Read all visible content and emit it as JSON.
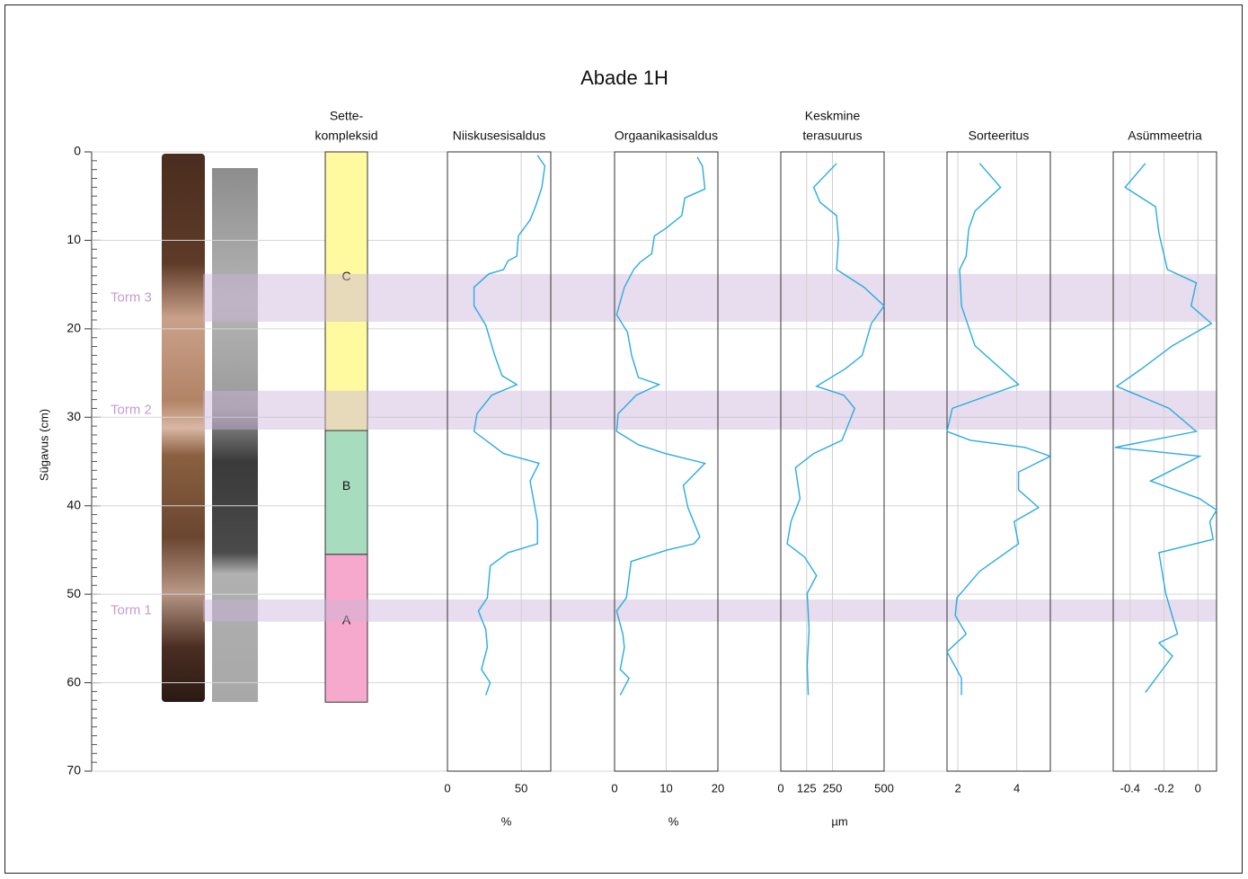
{
  "title": "Abade 1H",
  "depth_axis": {
    "label": "Sügavus (cm)",
    "lim": [
      0,
      70
    ],
    "ticks": [
      0,
      10,
      20,
      30,
      40,
      50,
      60,
      70
    ],
    "minor_step": 1,
    "grid": true
  },
  "storm_layers": [
    {
      "label": "Torm 3",
      "top": 13.8,
      "bottom": 19.2
    },
    {
      "label": "Torm 2",
      "top": 27.0,
      "bottom": 31.4
    },
    {
      "label": "Torm 1",
      "top": 50.6,
      "bottom": 53.1
    }
  ],
  "units": {
    "title": [
      "Sette-",
      "kompleksid"
    ],
    "zones": [
      {
        "label": "C",
        "top": 0,
        "bottom": 31.5,
        "color": "#fff9a0"
      },
      {
        "label": "B",
        "top": 31.5,
        "bottom": 45.5,
        "color": "#a8dcbf"
      },
      {
        "label": "A",
        "top": 45.5,
        "bottom": 62.2,
        "color": "#f6a9cc"
      }
    ]
  },
  "chart_data": [
    {
      "type": "line",
      "title": "Niiskusesisaldus",
      "xlabel": "%",
      "xlim": [
        0,
        70
      ],
      "xticks": [
        0,
        50
      ],
      "color": "#29abe2",
      "depths": [
        0.4,
        1.6,
        4.0,
        6.0,
        7.7,
        9.5,
        11.8,
        12.3,
        13.3,
        13.8,
        15.3,
        17.4,
        19.6,
        23.0,
        25.3,
        26.3,
        27.5,
        29.6,
        31.6,
        34.1,
        35.2,
        37.2,
        41.8,
        44.3,
        45.3,
        46.8,
        50.4,
        51.9,
        54.0,
        56.0,
        58.5,
        60.0,
        61.4
      ],
      "values": [
        61,
        66,
        64,
        60,
        56,
        48,
        47,
        41,
        38,
        28,
        18,
        18,
        26,
        32,
        37,
        47,
        30,
        20,
        18,
        38,
        62,
        56,
        61,
        61,
        41,
        29,
        27,
        21,
        26,
        27,
        23,
        29,
        26
      ]
    },
    {
      "type": "line",
      "title": "Orgaanikasisaldus",
      "xlabel": "%",
      "xlim": [
        0,
        20
      ],
      "xticks": [
        0,
        10,
        20
      ],
      "color": "#29abe2",
      "depths": [
        0.6,
        1.6,
        4.2,
        5.2,
        7.2,
        8.7,
        9.5,
        11.5,
        12.5,
        13.3,
        15.3,
        18.4,
        20.4,
        23.0,
        25.5,
        26.3,
        27.5,
        29.6,
        31.6,
        33.1,
        34.1,
        35.2,
        37.7,
        40.2,
        43.5,
        44.3,
        45.0,
        46.3,
        50.4,
        51.9,
        54.5,
        56.0,
        58.5,
        59.5,
        61.4
      ],
      "values": [
        16,
        17,
        17.5,
        13.6,
        13,
        9.8,
        7.7,
        7.2,
        4.9,
        3.7,
        1.9,
        0.4,
        2.5,
        3.3,
        4.6,
        8.6,
        4.2,
        0.7,
        0.4,
        4.6,
        9.8,
        17.5,
        13.3,
        14.2,
        16.5,
        15.4,
        10.2,
        3.2,
        2.3,
        0.4,
        1.6,
        1.9,
        1.1,
        2.8,
        1.1
      ]
    },
    {
      "type": "line",
      "title": [
        "Keskmine",
        "terasuurus"
      ],
      "xlabel": "µm",
      "xlim": [
        0,
        500
      ],
      "xticks": [
        0,
        125,
        250,
        500
      ],
      "color": "#29abe2",
      "depths": [
        1.3,
        4.0,
        5.7,
        7.2,
        9.8,
        13.3,
        15.3,
        17.4,
        19.4,
        23.0,
        24.5,
        26.5,
        27.5,
        29.0,
        32.6,
        34.1,
        35.7,
        39.2,
        41.8,
        44.3,
        45.8,
        47.9,
        49.9,
        54.0,
        58.0,
        61.4
      ],
      "values": [
        270,
        159,
        190,
        270,
        279,
        270,
        403,
        500,
        438,
        394,
        314,
        173,
        305,
        358,
        296,
        159,
        71,
        93,
        49,
        31,
        115,
        173,
        128,
        137,
        128,
        133
      ]
    },
    {
      "type": "line",
      "title": "Sorteeritus",
      "xlim": [
        1.63,
        5.14
      ],
      "xticks": [
        2,
        4
      ],
      "color": "#29abe2",
      "depths": [
        1.3,
        4.0,
        6.7,
        8.7,
        11.8,
        13.3,
        17.4,
        21.9,
        26.3,
        29.0,
        31.6,
        32.6,
        33.4,
        34.4,
        36.2,
        38.2,
        40.2,
        41.8,
        44.3,
        47.4,
        50.4,
        52.4,
        54.5,
        56.5,
        59.5,
        61.4
      ],
      "values": [
        2.74,
        3.45,
        2.58,
        2.37,
        2.28,
        2.06,
        2.12,
        2.58,
        4.06,
        1.81,
        1.63,
        2.43,
        4.28,
        5.14,
        4.06,
        4.06,
        4.74,
        3.91,
        4.06,
        2.74,
        1.97,
        1.91,
        2.28,
        1.63,
        2.12,
        2.12
      ]
    },
    {
      "type": "line",
      "title": "Asümmeetria",
      "xlim": [
        -0.5,
        0.11
      ],
      "xticks": [
        -0.4,
        -0.2,
        0
      ],
      "color": "#29abe2",
      "depths": [
        1.3,
        4.0,
        6.2,
        9.2,
        13.3,
        14.8,
        17.4,
        19.4,
        21.9,
        24.5,
        26.5,
        29.0,
        31.6,
        33.4,
        34.4,
        37.2,
        39.2,
        40.5,
        41.8,
        43.8,
        45.3,
        49.9,
        54.5,
        55.5,
        57.0,
        61.1
      ],
      "values": [
        -0.31,
        -0.43,
        -0.25,
        -0.23,
        -0.18,
        -0.01,
        -0.04,
        0.08,
        -0.15,
        -0.33,
        -0.48,
        -0.17,
        -0.01,
        -0.49,
        0.01,
        -0.28,
        0.01,
        0.11,
        0.07,
        0.09,
        -0.23,
        -0.19,
        -0.12,
        -0.23,
        -0.15,
        -0.31
      ]
    }
  ]
}
